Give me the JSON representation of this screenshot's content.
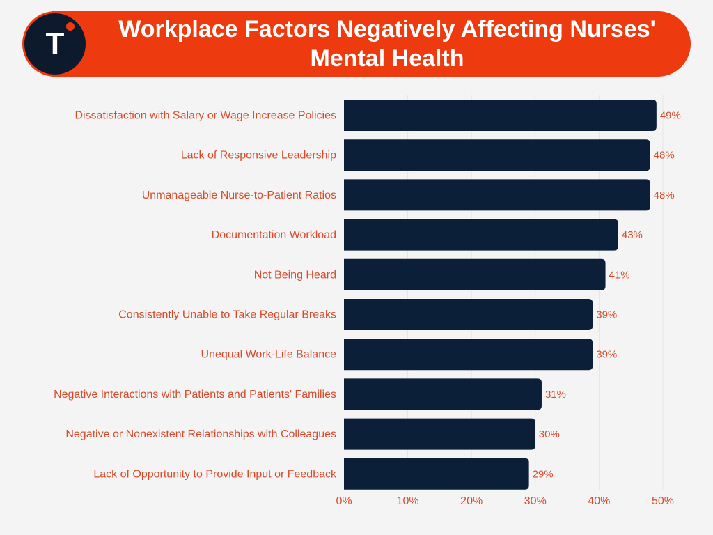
{
  "header": {
    "title": "Workplace Factors Negatively Affecting Nurses'\nMental Health",
    "logo_letter": "T"
  },
  "colors": {
    "accent": "#ee3a0f",
    "bar": "#0b1f38",
    "label": "#d94a2a",
    "background": "#f5f4f4"
  },
  "chart_data": {
    "type": "bar",
    "orientation": "horizontal",
    "categories": [
      "Dissatisfaction with Salary or Wage Increase Policies",
      "Lack of Responsive Leadership",
      "Unmanageable Nurse-to-Patient Ratios",
      "Documentation Workload",
      "Not Being Heard",
      "Consistently Unable to Take Regular Breaks",
      "Unequal Work-Life Balance",
      "Negative Interactions with Patients and Patients' Families",
      "Negative or Nonexistent Relationships with Colleagues",
      "Lack of Opportunity to Provide Input or Feedback"
    ],
    "values": [
      49,
      48,
      48,
      43,
      41,
      39,
      39,
      31,
      30,
      29
    ],
    "value_labels": [
      "49%",
      "48%",
      "48%",
      "43%",
      "41%",
      "39%",
      "39%",
      "31%",
      "30%",
      "29%"
    ],
    "x_ticks": [
      0,
      10,
      20,
      30,
      40,
      50
    ],
    "x_tick_labels": [
      "0%",
      "10%",
      "20%",
      "30%",
      "40%",
      "50%"
    ],
    "xlim": [
      0,
      50
    ],
    "grid": true
  }
}
